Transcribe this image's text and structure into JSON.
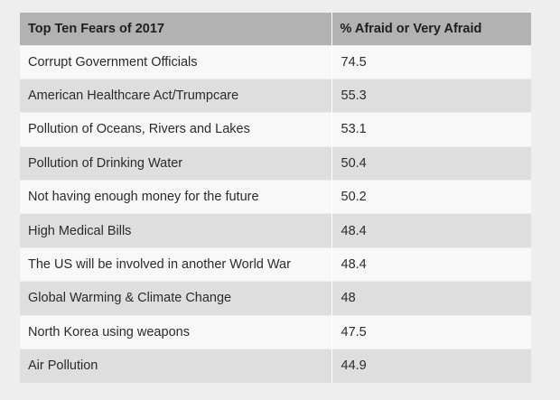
{
  "table": {
    "headers": [
      "Top Ten Fears of 2017",
      "% Afraid or Very Afraid"
    ],
    "rows": [
      {
        "fear": "Corrupt Government Officials",
        "percent": "74.5"
      },
      {
        "fear": "American Healthcare Act/Trumpcare",
        "percent": "55.3"
      },
      {
        "fear": "Pollution of Oceans, Rivers and Lakes",
        "percent": "53.1"
      },
      {
        "fear": "Pollution of Drinking Water",
        "percent": "50.4"
      },
      {
        "fear": "Not having enough money for the future",
        "percent": "50.2"
      },
      {
        "fear": "High Medical Bills",
        "percent": "48.4"
      },
      {
        "fear": "The US will be involved in another World War",
        "percent": "48.4"
      },
      {
        "fear": "Global Warming & Climate Change",
        "percent": "48"
      },
      {
        "fear": "North Korea using weapons",
        "percent": "47.5"
      },
      {
        "fear": "Air Pollution",
        "percent": "44.9"
      }
    ]
  },
  "colors": {
    "header_background": "#b2b2b2",
    "row_light": "#f8f8f8",
    "row_dark": "#dedede",
    "page_background": "#eeeeee"
  }
}
